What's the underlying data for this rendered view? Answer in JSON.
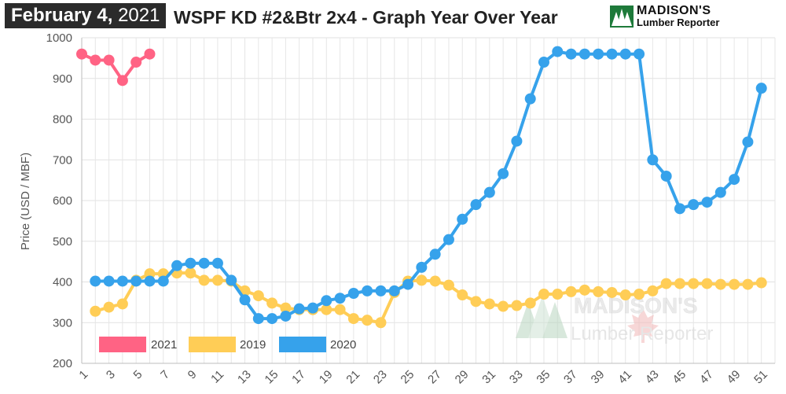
{
  "header": {
    "date_month_day": "February 4,",
    "date_year": "2021",
    "title": "WSPF KD #2&Btr 2x4 - Graph Year Over Year",
    "logo_line1": "MADISON'S",
    "logo_line2": "Lumber Reporter"
  },
  "watermark": {
    "line1": "MADISON'S",
    "line2": "Lumber Reporter"
  },
  "chart_data": {
    "type": "line",
    "ylabel": "Price (USD / MBF)",
    "ylim": [
      200,
      1000
    ],
    "yticks": [
      200,
      300,
      400,
      500,
      600,
      700,
      800,
      900,
      1000
    ],
    "xlim": [
      1,
      52
    ],
    "xticks": [
      1,
      3,
      5,
      7,
      9,
      11,
      13,
      15,
      17,
      19,
      21,
      23,
      25,
      27,
      29,
      31,
      33,
      35,
      37,
      39,
      41,
      43,
      45,
      47,
      49,
      51
    ],
    "grid": true,
    "legend_position": "bottom-left",
    "series": [
      {
        "name": "2021",
        "color": "#ff6384",
        "x": [
          1,
          2,
          3,
          4,
          5,
          6
        ],
        "values": [
          960,
          945,
          945,
          895,
          940,
          960
        ]
      },
      {
        "name": "2019",
        "color": "#ffcd56",
        "x": [
          2,
          3,
          4,
          5,
          6,
          7,
          8,
          9,
          10,
          11,
          12,
          13,
          14,
          15,
          16,
          17,
          18,
          19,
          20,
          21,
          22,
          23,
          24,
          25,
          26,
          27,
          28,
          29,
          30,
          31,
          32,
          33,
          34,
          35,
          36,
          37,
          38,
          39,
          40,
          41,
          42,
          43,
          44,
          45,
          46,
          47,
          48,
          49,
          50,
          51
        ],
        "values": [
          328,
          338,
          346,
          404,
          420,
          420,
          422,
          422,
          404,
          404,
          402,
          378,
          366,
          348,
          336,
          332,
          332,
          332,
          332,
          310,
          306,
          300,
          374,
          402,
          404,
          402,
          392,
          368,
          352,
          346,
          340,
          342,
          348,
          370,
          370,
          376,
          380,
          376,
          374,
          368,
          370,
          378,
          396,
          396,
          396,
          396,
          394,
          394,
          394,
          398
        ]
      },
      {
        "name": "2020",
        "color": "#36a2eb",
        "x": [
          2,
          3,
          4,
          5,
          6,
          7,
          8,
          9,
          10,
          11,
          12,
          13,
          14,
          15,
          16,
          17,
          18,
          19,
          20,
          21,
          22,
          23,
          24,
          25,
          26,
          27,
          28,
          29,
          30,
          31,
          32,
          33,
          34,
          35,
          36,
          37,
          38,
          39,
          40,
          41,
          42,
          43,
          44,
          45,
          46,
          47,
          48,
          49,
          50,
          51
        ],
        "values": [
          402,
          402,
          402,
          402,
          402,
          402,
          440,
          446,
          446,
          446,
          404,
          356,
          310,
          310,
          316,
          334,
          336,
          354,
          360,
          372,
          378,
          378,
          378,
          394,
          436,
          468,
          504,
          554,
          590,
          620,
          666,
          746,
          850,
          940,
          966,
          960,
          960,
          960,
          960,
          960,
          960,
          700,
          660,
          580,
          590,
          596,
          620,
          652,
          744,
          876
        ]
      }
    ]
  }
}
